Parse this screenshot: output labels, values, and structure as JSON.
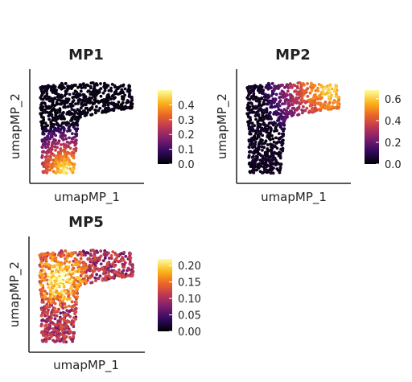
{
  "chart_data": [
    {
      "type": "scatter",
      "title": "MP1",
      "xlabel": "umapMP_1",
      "ylabel": "umapMP_2",
      "colorbar": {
        "ticks": [
          "0.0",
          "0.1",
          "0.2",
          "0.3",
          "0.4"
        ],
        "range": [
          0,
          0.5
        ],
        "palette": "inferno"
      },
      "pattern": "high values concentrated at bottom tip of lower arm",
      "legend_position": "right"
    },
    {
      "type": "scatter",
      "title": "MP2",
      "xlabel": "umapMP_1",
      "ylabel": "umapMP_2",
      "colorbar": {
        "ticks": [
          "0.0",
          "0.2",
          "0.4",
          "0.6"
        ],
        "range": [
          0,
          0.68
        ],
        "palette": "inferno"
      },
      "pattern": "high values concentrated at right end of upper arm",
      "legend_position": "right"
    },
    {
      "type": "scatter",
      "title": "MP5",
      "xlabel": "umapMP_1",
      "ylabel": "umapMP_2",
      "colorbar": {
        "ticks": [
          "0.00",
          "0.05",
          "0.10",
          "0.15",
          "0.20"
        ],
        "range": [
          0,
          0.22
        ],
        "palette": "inferno"
      },
      "pattern": "moderate values spread across body, hotspots near upper-left",
      "legend_position": "right"
    }
  ],
  "colors": {
    "inferno": [
      "#000004",
      "#320a5e",
      "#781c6d",
      "#bc3754",
      "#ed6925",
      "#fbb61a",
      "#fcffa4"
    ]
  }
}
